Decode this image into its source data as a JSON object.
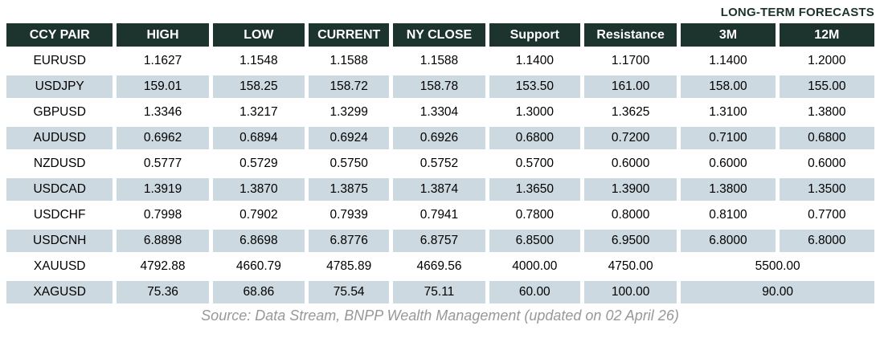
{
  "title": "LONG-TERM FORECASTS",
  "table": {
    "columns": [
      "CCY PAIR",
      "HIGH",
      "LOW",
      "CURRENT",
      "NY CLOSE",
      "Support",
      "Resistance",
      "3M",
      "12M"
    ],
    "rows": [
      {
        "cells": [
          "EURUSD",
          "1.1627",
          "1.1548",
          "1.1588",
          "1.1588",
          "1.1400",
          "1.1700",
          "1.1400",
          "1.2000"
        ]
      },
      {
        "cells": [
          "USDJPY",
          "159.01",
          "158.25",
          "158.72",
          "158.78",
          "153.50",
          "161.00",
          "158.00",
          "155.00"
        ]
      },
      {
        "cells": [
          "GBPUSD",
          "1.3346",
          "1.3217",
          "1.3299",
          "1.3304",
          "1.3000",
          "1.3625",
          "1.3100",
          "1.3800"
        ]
      },
      {
        "cells": [
          "AUDUSD",
          "0.6962",
          "0.6894",
          "0.6924",
          "0.6926",
          "0.6800",
          "0.7200",
          "0.7100",
          "0.6800"
        ]
      },
      {
        "cells": [
          "NZDUSD",
          "0.5777",
          "0.5729",
          "0.5750",
          "0.5752",
          "0.5700",
          "0.6000",
          "0.6000",
          "0.6000"
        ]
      },
      {
        "cells": [
          "USDCAD",
          "1.3919",
          "1.3870",
          "1.3875",
          "1.3874",
          "1.3650",
          "1.3900",
          "1.3800",
          "1.3500"
        ]
      },
      {
        "cells": [
          "USDCHF",
          "0.7998",
          "0.7902",
          "0.7939",
          "0.7941",
          "0.7800",
          "0.8000",
          "0.8100",
          "0.7700"
        ]
      },
      {
        "cells": [
          "USDCNH",
          "6.8898",
          "6.8698",
          "6.8776",
          "6.8757",
          "6.8500",
          "6.9500",
          "6.8000",
          "6.8000"
        ]
      },
      {
        "cells": [
          "XAUUSD",
          "4792.88",
          "4660.79",
          "4785.89",
          "4669.56",
          "4000.00",
          "4750.00"
        ],
        "merged_3m_12m": "5500.00"
      },
      {
        "cells": [
          "XAGUSD",
          "75.36",
          "68.86",
          "75.54",
          "75.11",
          "60.00",
          "100.00"
        ],
        "merged_3m_12m": "90.00"
      }
    ]
  },
  "source": "Source: Data Stream, BNPP Wealth Management (updated on 02 April 26)",
  "colors": {
    "header_bg": "#1c332e",
    "header_text": "#ffffff",
    "row_alt_bg": "#ccd9e0",
    "row_text": "#000000",
    "title_text": "#1c332e",
    "source_text": "#989898"
  }
}
